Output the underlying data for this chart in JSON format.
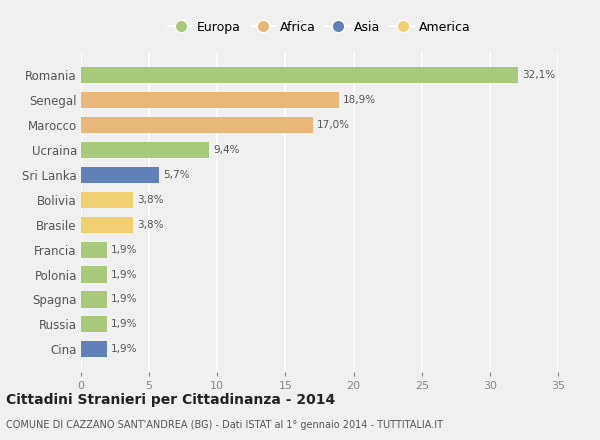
{
  "countries": [
    "Romania",
    "Senegal",
    "Marocco",
    "Ucraina",
    "Sri Lanka",
    "Bolivia",
    "Brasile",
    "Francia",
    "Polonia",
    "Spagna",
    "Russia",
    "Cina"
  ],
  "values": [
    32.1,
    18.9,
    17.0,
    9.4,
    5.7,
    3.8,
    3.8,
    1.9,
    1.9,
    1.9,
    1.9,
    1.9
  ],
  "labels": [
    "32,1%",
    "18,9%",
    "17,0%",
    "9,4%",
    "5,7%",
    "3,8%",
    "3,8%",
    "1,9%",
    "1,9%",
    "1,9%",
    "1,9%",
    "1,9%"
  ],
  "colors": [
    "#a8c87a",
    "#e8b87a",
    "#e8b87a",
    "#a8c87a",
    "#6080b8",
    "#f0d070",
    "#f0d070",
    "#a8c87a",
    "#a8c87a",
    "#a8c87a",
    "#a8c87a",
    "#6080b8"
  ],
  "continent_colors": {
    "Europa": "#a8c87a",
    "Africa": "#e8b87a",
    "Asia": "#6080b8",
    "America": "#f0d070"
  },
  "legend_labels": [
    "Europa",
    "Africa",
    "Asia",
    "America"
  ],
  "xlim": [
    0,
    35
  ],
  "xticks": [
    0,
    5,
    10,
    15,
    20,
    25,
    30,
    35
  ],
  "title": "Cittadini Stranieri per Cittadinanza - 2014",
  "subtitle": "COMUNE DI CAZZANO SANT'ANDREA (BG) - Dati ISTAT al 1° gennaio 2014 - TUTTITALIA.IT",
  "background_color": "#f0f0f0",
  "grid_color": "#ffffff",
  "bar_height": 0.65,
  "label_fontsize": 7.5,
  "ytick_fontsize": 8.5,
  "xtick_fontsize": 8
}
